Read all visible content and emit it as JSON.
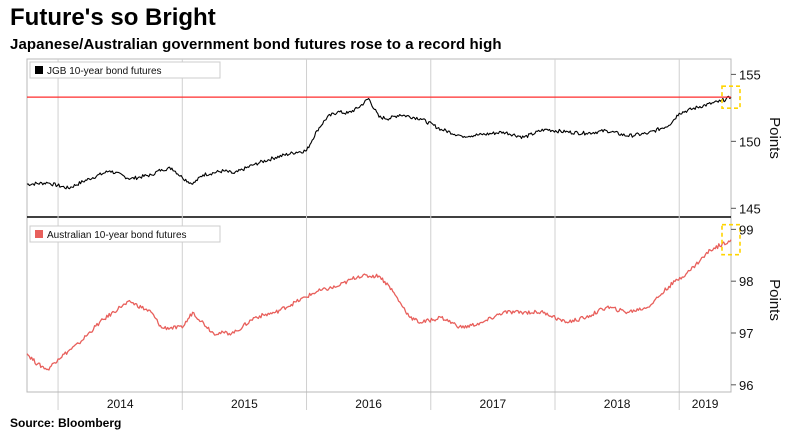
{
  "title": "Future's so Bright",
  "subtitle": "Japanese/Australian government bond futures rose to a record high",
  "source": "Source: Bloomberg",
  "colors": {
    "jgb": "#000000",
    "aus": "#e8605c",
    "record_line": "#ff2d2d",
    "highlight": "#ffd400",
    "grid": "#d0d0d0"
  },
  "chart_data": [
    {
      "type": "line",
      "legend": "JGB 10-year bond futures",
      "ylabel": "Points",
      "ylim": [
        144.5,
        156
      ],
      "yticks": [
        145,
        150,
        155
      ],
      "record_line": 153.3,
      "x_years": [
        "2014",
        "2015",
        "2016",
        "2017",
        "2018",
        "2019"
      ],
      "x_range": [
        "2013-10",
        "2019-06"
      ],
      "series": [
        {
          "x": [
            "2013-10",
            "2013-12",
            "2014-02",
            "2014-04",
            "2014-06",
            "2014-08",
            "2014-10",
            "2014-11",
            "2014-12",
            "2015-01",
            "2015-02",
            "2015-03",
            "2015-05",
            "2015-06",
            "2015-08",
            "2015-10",
            "2015-12",
            "2016-01",
            "2016-02",
            "2016-03",
            "2016-04",
            "2016-05",
            "2016-06",
            "2016-07",
            "2016-08",
            "2016-09",
            "2016-10",
            "2016-12",
            "2017-02",
            "2017-04",
            "2017-06",
            "2017-08",
            "2017-10",
            "2017-12",
            "2018-02",
            "2018-04",
            "2018-06",
            "2018-08",
            "2018-10",
            "2018-12",
            "2019-01",
            "2019-03",
            "2019-05",
            "2019-06"
          ],
          "values": [
            146.8,
            146.9,
            146.5,
            147.2,
            147.8,
            147.2,
            147.5,
            147.9,
            148.0,
            147.3,
            146.8,
            147.5,
            147.8,
            147.6,
            148.3,
            148.8,
            149.2,
            149.3,
            150.8,
            151.8,
            152.2,
            152.1,
            152.5,
            153.2,
            151.8,
            151.7,
            152.0,
            151.7,
            150.9,
            150.4,
            150.5,
            150.7,
            150.3,
            150.9,
            150.7,
            150.6,
            150.8,
            150.4,
            150.6,
            151.2,
            152.1,
            152.6,
            153.0,
            153.3
          ]
        }
      ]
    },
    {
      "type": "line",
      "legend": "Australian 10-year bond futures",
      "ylabel": "Points",
      "ylim": [
        95.9,
        99.2
      ],
      "yticks": [
        96,
        97,
        98,
        99
      ],
      "x_years": [
        "2014",
        "2015",
        "2016",
        "2017",
        "2018",
        "2019"
      ],
      "x_range": [
        "2013-10",
        "2019-06"
      ],
      "series": [
        {
          "x": [
            "2013-10",
            "2013-11",
            "2013-12",
            "2014-01",
            "2014-03",
            "2014-05",
            "2014-07",
            "2014-08",
            "2014-10",
            "2014-11",
            "2015-01",
            "2015-02",
            "2015-04",
            "2015-06",
            "2015-08",
            "2015-10",
            "2015-12",
            "2016-02",
            "2016-04",
            "2016-06",
            "2016-08",
            "2016-09",
            "2016-10",
            "2016-11",
            "2016-12",
            "2017-02",
            "2017-04",
            "2017-06",
            "2017-08",
            "2017-10",
            "2017-12",
            "2018-02",
            "2018-04",
            "2018-06",
            "2018-08",
            "2018-10",
            "2018-12",
            "2019-02",
            "2019-04",
            "2019-06"
          ],
          "values": [
            96.6,
            96.4,
            96.3,
            96.5,
            96.8,
            97.2,
            97.5,
            97.6,
            97.4,
            97.1,
            97.1,
            97.4,
            97.0,
            97.0,
            97.3,
            97.4,
            97.6,
            97.8,
            97.9,
            98.1,
            98.1,
            97.9,
            97.6,
            97.3,
            97.2,
            97.3,
            97.1,
            97.2,
            97.4,
            97.4,
            97.4,
            97.2,
            97.3,
            97.5,
            97.4,
            97.5,
            97.9,
            98.2,
            98.6,
            98.8
          ]
        }
      ]
    }
  ]
}
